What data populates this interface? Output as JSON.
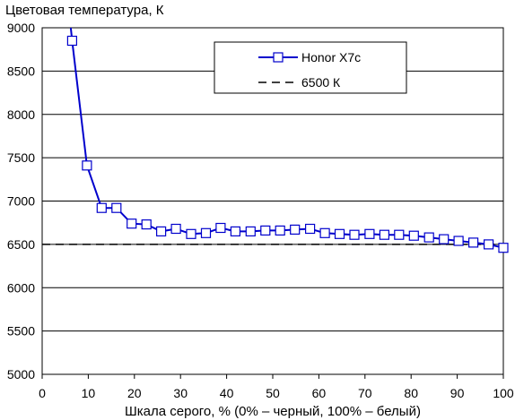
{
  "chart_data": {
    "type": "line",
    "title": "Цветовая температура, К",
    "xlabel": "Шкала серого, % (0% – черный, 100% – белый)",
    "ylabel": "",
    "xlim": [
      0,
      100
    ],
    "ylim": [
      5000,
      9000
    ],
    "x_ticks": [
      0,
      10,
      20,
      30,
      40,
      50,
      60,
      70,
      80,
      90,
      100
    ],
    "y_ticks": [
      5000,
      5500,
      6000,
      6500,
      7000,
      7500,
      8000,
      8500,
      9000
    ],
    "grid": "horizontal",
    "legend_position": "top-right",
    "series": [
      {
        "name": "Honor X7c",
        "color": "#0000cc",
        "marker": "square",
        "x": [
          6.5,
          9.7,
          12.9,
          16.1,
          19.4,
          22.6,
          25.8,
          29.0,
          32.3,
          35.5,
          38.7,
          41.9,
          45.2,
          48.4,
          51.6,
          54.8,
          58.1,
          61.3,
          64.5,
          67.7,
          71.0,
          74.2,
          77.4,
          80.6,
          83.9,
          87.1,
          90.3,
          93.5,
          96.8,
          100
        ],
        "values": [
          8850,
          7410,
          6920,
          6920,
          6740,
          6730,
          6650,
          6680,
          6620,
          6630,
          6690,
          6650,
          6650,
          6660,
          6660,
          6670,
          6680,
          6630,
          6620,
          6610,
          6620,
          6610,
          6610,
          6600,
          6580,
          6560,
          6540,
          6520,
          6500,
          6460
        ],
        "extends_above_top_at_x": 6.2
      },
      {
        "name": "6500 К",
        "color": "#000000",
        "style": "dashed",
        "x": [
          0,
          100
        ],
        "values": [
          6500,
          6500
        ]
      }
    ]
  }
}
